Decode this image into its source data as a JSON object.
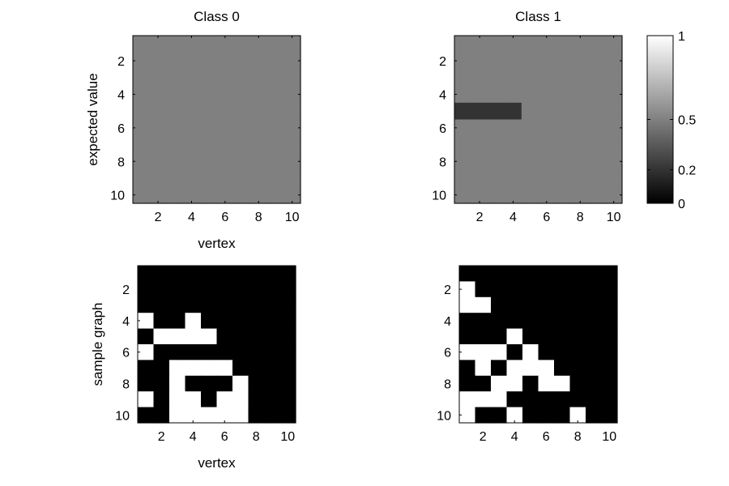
{
  "chart_data": [
    {
      "type": "heatmap",
      "title": "Class 0",
      "xlabel": "vertex",
      "ylabel": "expected value",
      "xticks": [
        "2",
        "4",
        "6",
        "8",
        "10"
      ],
      "yticks": [
        "2",
        "4",
        "6",
        "8",
        "10"
      ],
      "xlim": [
        0.5,
        10.5
      ],
      "ylim": [
        0.5,
        10.5
      ],
      "values": [
        [
          0.5,
          0.5,
          0.5,
          0.5,
          0.5,
          0.5,
          0.5,
          0.5,
          0.5,
          0.5
        ],
        [
          0.5,
          0.5,
          0.5,
          0.5,
          0.5,
          0.5,
          0.5,
          0.5,
          0.5,
          0.5
        ],
        [
          0.5,
          0.5,
          0.5,
          0.5,
          0.5,
          0.5,
          0.5,
          0.5,
          0.5,
          0.5
        ],
        [
          0.5,
          0.5,
          0.5,
          0.5,
          0.5,
          0.5,
          0.5,
          0.5,
          0.5,
          0.5
        ],
        [
          0.5,
          0.5,
          0.5,
          0.5,
          0.5,
          0.5,
          0.5,
          0.5,
          0.5,
          0.5
        ],
        [
          0.5,
          0.5,
          0.5,
          0.5,
          0.5,
          0.5,
          0.5,
          0.5,
          0.5,
          0.5
        ],
        [
          0.5,
          0.5,
          0.5,
          0.5,
          0.5,
          0.5,
          0.5,
          0.5,
          0.5,
          0.5
        ],
        [
          0.5,
          0.5,
          0.5,
          0.5,
          0.5,
          0.5,
          0.5,
          0.5,
          0.5,
          0.5
        ],
        [
          0.5,
          0.5,
          0.5,
          0.5,
          0.5,
          0.5,
          0.5,
          0.5,
          0.5,
          0.5
        ],
        [
          0.5,
          0.5,
          0.5,
          0.5,
          0.5,
          0.5,
          0.5,
          0.5,
          0.5,
          0.5
        ]
      ]
    },
    {
      "type": "heatmap",
      "title": "Class 1",
      "xlabel": "",
      "ylabel": "",
      "xticks": [
        "2",
        "4",
        "6",
        "8",
        "10"
      ],
      "yticks": [
        "2",
        "4",
        "6",
        "8",
        "10"
      ],
      "xlim": [
        0.5,
        10.5
      ],
      "ylim": [
        0.5,
        10.5
      ],
      "values": [
        [
          0.5,
          0.5,
          0.5,
          0.5,
          0.5,
          0.5,
          0.5,
          0.5,
          0.5,
          0.5
        ],
        [
          0.5,
          0.5,
          0.5,
          0.5,
          0.5,
          0.5,
          0.5,
          0.5,
          0.5,
          0.5
        ],
        [
          0.5,
          0.5,
          0.5,
          0.5,
          0.5,
          0.5,
          0.5,
          0.5,
          0.5,
          0.5
        ],
        [
          0.5,
          0.5,
          0.5,
          0.5,
          0.5,
          0.5,
          0.5,
          0.5,
          0.5,
          0.5
        ],
        [
          0.2,
          0.2,
          0.2,
          0.2,
          0.5,
          0.5,
          0.5,
          0.5,
          0.5,
          0.5
        ],
        [
          0.5,
          0.5,
          0.5,
          0.5,
          0.5,
          0.5,
          0.5,
          0.5,
          0.5,
          0.5
        ],
        [
          0.5,
          0.5,
          0.5,
          0.5,
          0.5,
          0.5,
          0.5,
          0.5,
          0.5,
          0.5
        ],
        [
          0.5,
          0.5,
          0.5,
          0.5,
          0.5,
          0.5,
          0.5,
          0.5,
          0.5,
          0.5
        ],
        [
          0.5,
          0.5,
          0.5,
          0.5,
          0.5,
          0.5,
          0.5,
          0.5,
          0.5,
          0.5
        ],
        [
          0.5,
          0.5,
          0.5,
          0.5,
          0.5,
          0.5,
          0.5,
          0.5,
          0.5,
          0.5
        ]
      ]
    },
    {
      "type": "heatmap",
      "title": "",
      "xlabel": "vertex",
      "ylabel": "sample graph",
      "xticks": [
        "2",
        "4",
        "6",
        "8",
        "10"
      ],
      "yticks": [
        "2",
        "4",
        "6",
        "8",
        "10"
      ],
      "xlim": [
        0.5,
        10.5
      ],
      "ylim": [
        0.5,
        10.5
      ],
      "values": [
        [
          0,
          0,
          0,
          0,
          0,
          0,
          0,
          0,
          0,
          0
        ],
        [
          0,
          0,
          0,
          0,
          0,
          0,
          0,
          0,
          0,
          0
        ],
        [
          0,
          0,
          0,
          0,
          0,
          0,
          0,
          0,
          0,
          0
        ],
        [
          1,
          0,
          0,
          1,
          0,
          0,
          0,
          0,
          0,
          0
        ],
        [
          0,
          1,
          1,
          1,
          1,
          0,
          0,
          0,
          0,
          0
        ],
        [
          1,
          0,
          0,
          0,
          0,
          0,
          0,
          0,
          0,
          0
        ],
        [
          0,
          0,
          1,
          1,
          1,
          1,
          0,
          0,
          0,
          0
        ],
        [
          0,
          0,
          1,
          0,
          0,
          0,
          1,
          0,
          0,
          0
        ],
        [
          1,
          0,
          1,
          1,
          0,
          1,
          1,
          0,
          0,
          0
        ],
        [
          0,
          0,
          1,
          1,
          1,
          1,
          1,
          0,
          0,
          0
        ]
      ]
    },
    {
      "type": "heatmap",
      "title": "",
      "xlabel": "",
      "ylabel": "",
      "xticks": [
        "2",
        "4",
        "6",
        "8",
        "10"
      ],
      "yticks": [
        "2",
        "4",
        "6",
        "8",
        "10"
      ],
      "xlim": [
        0.5,
        10.5
      ],
      "ylim": [
        0.5,
        10.5
      ],
      "values": [
        [
          0,
          0,
          0,
          0,
          0,
          0,
          0,
          0,
          0,
          0
        ],
        [
          1,
          0,
          0,
          0,
          0,
          0,
          0,
          0,
          0,
          0
        ],
        [
          1,
          1,
          0,
          0,
          0,
          0,
          0,
          0,
          0,
          0
        ],
        [
          0,
          0,
          0,
          0,
          0,
          0,
          0,
          0,
          0,
          0
        ],
        [
          0,
          0,
          0,
          1,
          0,
          0,
          0,
          0,
          0,
          0
        ],
        [
          1,
          1,
          1,
          0,
          1,
          0,
          0,
          0,
          0,
          0
        ],
        [
          0,
          1,
          0,
          1,
          1,
          1,
          0,
          0,
          0,
          0
        ],
        [
          0,
          0,
          1,
          1,
          0,
          1,
          1,
          0,
          0,
          0
        ],
        [
          1,
          1,
          1,
          0,
          0,
          0,
          0,
          0,
          0,
          0
        ],
        [
          1,
          0,
          0,
          1,
          0,
          0,
          0,
          1,
          0,
          0
        ]
      ]
    }
  ],
  "colorbar": {
    "ticks": [
      "1",
      "0.5",
      "0.2",
      "0"
    ],
    "tick_values": [
      1,
      0.5,
      0.2,
      0
    ],
    "range": [
      0,
      1
    ]
  }
}
